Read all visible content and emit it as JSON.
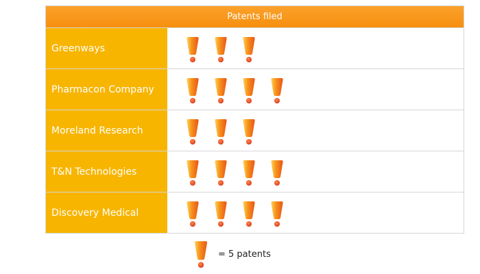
{
  "chart_data": {
    "type": "pictograph",
    "title": "Patents filed",
    "categories": [
      "Greenways",
      "Pharmacon Company",
      "Moreland Research",
      "T&N Technologies",
      "Discovery Medical"
    ],
    "icon_counts": [
      3,
      4,
      3,
      4,
      4
    ],
    "values": [
      15,
      20,
      15,
      20,
      20
    ],
    "icon": "exclamation-icon",
    "icon_unit_value": 5,
    "legend_text": "= 5 patents"
  },
  "colors": {
    "header": "#f7950f",
    "label_background": "#f7b500",
    "label_text": "#ffffff",
    "icon_fill": "#f05a28",
    "icon_highlight": "#ffd35a",
    "icon_dot": "#e8361d"
  }
}
